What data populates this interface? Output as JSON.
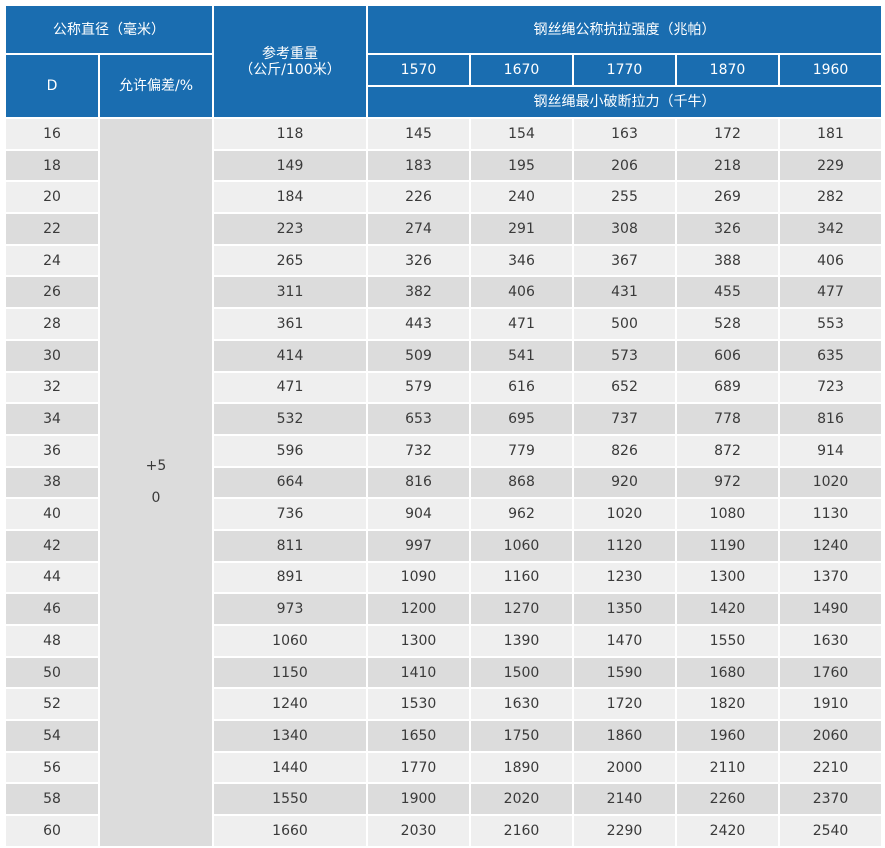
{
  "header": {
    "nominal_diameter": "公称直径（毫米）",
    "d_label": "D",
    "tolerance_label": "允许偏差/%",
    "weight_label_line1": "参考重量",
    "weight_label_line2": "（公斤/100米）",
    "strength_group": "钢丝绳公称抗拉强度（兆帕）",
    "strengths": [
      "1570",
      "1670",
      "1770",
      "1870",
      "1960"
    ],
    "breaking_force_label": "钢丝绳最小破断拉力（千牛）"
  },
  "tolerance": {
    "plus": "+5",
    "minus": "0"
  },
  "colors": {
    "header_bg": "#1a6db0",
    "row_light": "#efefef",
    "row_dark": "#dcdcdc"
  },
  "rows": [
    {
      "d": "16",
      "w": "118",
      "f": [
        "145",
        "154",
        "163",
        "172",
        "181"
      ]
    },
    {
      "d": "18",
      "w": "149",
      "f": [
        "183",
        "195",
        "206",
        "218",
        "229"
      ]
    },
    {
      "d": "20",
      "w": "184",
      "f": [
        "226",
        "240",
        "255",
        "269",
        "282"
      ]
    },
    {
      "d": "22",
      "w": "223",
      "f": [
        "274",
        "291",
        "308",
        "326",
        "342"
      ]
    },
    {
      "d": "24",
      "w": "265",
      "f": [
        "326",
        "346",
        "367",
        "388",
        "406"
      ]
    },
    {
      "d": "26",
      "w": "311",
      "f": [
        "382",
        "406",
        "431",
        "455",
        "477"
      ]
    },
    {
      "d": "28",
      "w": "361",
      "f": [
        "443",
        "471",
        "500",
        "528",
        "553"
      ]
    },
    {
      "d": "30",
      "w": "414",
      "f": [
        "509",
        "541",
        "573",
        "606",
        "635"
      ]
    },
    {
      "d": "32",
      "w": "471",
      "f": [
        "579",
        "616",
        "652",
        "689",
        "723"
      ]
    },
    {
      "d": "34",
      "w": "532",
      "f": [
        "653",
        "695",
        "737",
        "778",
        "816"
      ]
    },
    {
      "d": "36",
      "w": "596",
      "f": [
        "732",
        "779",
        "826",
        "872",
        "914"
      ]
    },
    {
      "d": "38",
      "w": "664",
      "f": [
        "816",
        "868",
        "920",
        "972",
        "1020"
      ]
    },
    {
      "d": "40",
      "w": "736",
      "f": [
        "904",
        "962",
        "1020",
        "1080",
        "1130"
      ]
    },
    {
      "d": "42",
      "w": "811",
      "f": [
        "997",
        "1060",
        "1120",
        "1190",
        "1240"
      ]
    },
    {
      "d": "44",
      "w": "891",
      "f": [
        "1090",
        "1160",
        "1230",
        "1300",
        "1370"
      ]
    },
    {
      "d": "46",
      "w": "973",
      "f": [
        "1200",
        "1270",
        "1350",
        "1420",
        "1490"
      ]
    },
    {
      "d": "48",
      "w": "1060",
      "f": [
        "1300",
        "1390",
        "1470",
        "1550",
        "1630"
      ]
    },
    {
      "d": "50",
      "w": "1150",
      "f": [
        "1410",
        "1500",
        "1590",
        "1680",
        "1760"
      ]
    },
    {
      "d": "52",
      "w": "1240",
      "f": [
        "1530",
        "1630",
        "1720",
        "1820",
        "1910"
      ]
    },
    {
      "d": "54",
      "w": "1340",
      "f": [
        "1650",
        "1750",
        "1860",
        "1960",
        "2060"
      ]
    },
    {
      "d": "56",
      "w": "1440",
      "f": [
        "1770",
        "1890",
        "2000",
        "2110",
        "2210"
      ]
    },
    {
      "d": "58",
      "w": "1550",
      "f": [
        "1900",
        "2020",
        "2140",
        "2260",
        "2370"
      ]
    },
    {
      "d": "60",
      "w": "1660",
      "f": [
        "2030",
        "2160",
        "2290",
        "2420",
        "2540"
      ]
    }
  ]
}
